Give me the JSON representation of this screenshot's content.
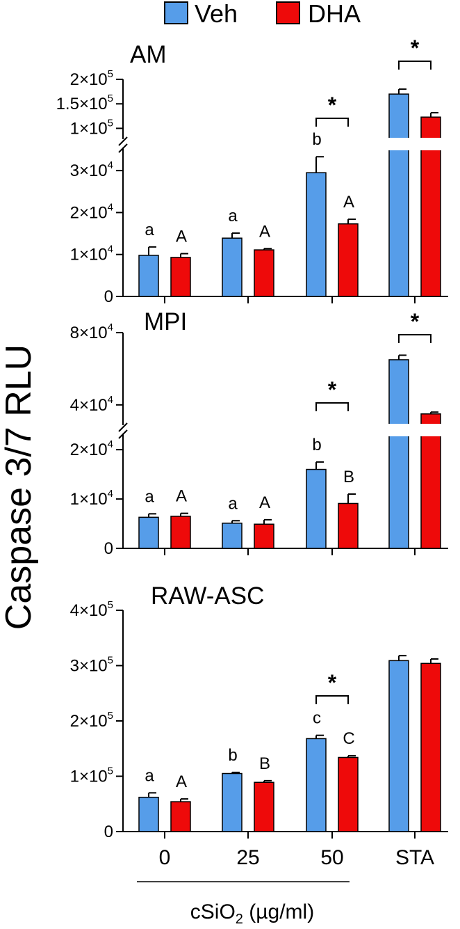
{
  "chart_data": {
    "type": "bar",
    "ylabel": "Caspase 3/7 RLU",
    "xlabel": {
      "main": "cSiO",
      "subscript": "2",
      "units": " (µg/ml)"
    },
    "legend": [
      {
        "name": "Veh",
        "color": "#569DE9"
      },
      {
        "name": "DHA",
        "color": "#EE0A0A"
      }
    ],
    "categories": [
      "0",
      "25",
      "50",
      "STA"
    ],
    "panels": [
      {
        "title": "AM",
        "axis_break": true,
        "y_ticks_lower": [
          {
            "value": 0,
            "mant": "0",
            "exp": ""
          },
          {
            "value": 10000,
            "mant": "1×10",
            "exp": "4"
          },
          {
            "value": 20000,
            "mant": "2×10",
            "exp": "4"
          },
          {
            "value": 30000,
            "mant": "3×10",
            "exp": "4"
          }
        ],
        "y_ticks_upper": [
          {
            "value": 100000,
            "mant": "1×10",
            "exp": "5"
          },
          {
            "value": 150000,
            "mant": "1.5×10",
            "exp": "5"
          },
          {
            "value": 200000,
            "mant": "2×10",
            "exp": "5"
          }
        ],
        "series": [
          {
            "name": "Veh",
            "values": [
              9800,
              13900,
              29500,
              170000
            ],
            "errors": [
              2000,
              1200,
              3800,
              10000
            ],
            "letters": [
              "a",
              "a",
              "b",
              ""
            ]
          },
          {
            "name": "DHA",
            "values": [
              9300,
              11100,
              17300,
              123000
            ],
            "errors": [
              900,
              300,
              1100,
              9000
            ],
            "letters": [
              "A",
              "A",
              "A",
              ""
            ]
          }
        ],
        "significance": [
          {
            "category": "50",
            "label": "*"
          },
          {
            "category": "STA",
            "label": "*"
          }
        ]
      },
      {
        "title": "MPI",
        "axis_break": true,
        "y_ticks_lower": [
          {
            "value": 0,
            "mant": "0",
            "exp": ""
          },
          {
            "value": 10000,
            "mant": "1×10",
            "exp": "4"
          },
          {
            "value": 20000,
            "mant": "2×10",
            "exp": "4"
          }
        ],
        "y_ticks_upper": [
          {
            "value": 40000,
            "mant": "4×10",
            "exp": "4"
          },
          {
            "value": 80000,
            "mant": "8×10",
            "exp": "4"
          }
        ],
        "series": [
          {
            "name": "Veh",
            "values": [
              6300,
              5100,
              16000,
              65000
            ],
            "errors": [
              700,
              500,
              1500,
              2500
            ],
            "letters": [
              "a",
              "a",
              "b",
              ""
            ]
          },
          {
            "name": "DHA",
            "values": [
              6500,
              4900,
              9100,
              35000
            ],
            "errors": [
              600,
              900,
              1900,
              1000
            ],
            "letters": [
              "A",
              "A",
              "B",
              ""
            ]
          }
        ],
        "significance": [
          {
            "category": "50",
            "label": "*"
          },
          {
            "category": "STA",
            "label": "*"
          }
        ]
      },
      {
        "title": "RAW-ASC",
        "axis_break": false,
        "y_ticks": [
          {
            "value": 0,
            "mant": "0",
            "exp": ""
          },
          {
            "value": 100000,
            "mant": "1×10",
            "exp": "5"
          },
          {
            "value": 200000,
            "mant": "2×10",
            "exp": "5"
          },
          {
            "value": 300000,
            "mant": "3×10",
            "exp": "5"
          },
          {
            "value": 400000,
            "mant": "4×10",
            "exp": "5"
          }
        ],
        "series": [
          {
            "name": "Veh",
            "values": [
              62000,
              105000,
              168000,
              309000
            ],
            "errors": [
              8000,
              2000,
              6000,
              9000
            ],
            "letters": [
              "a",
              "b",
              "c",
              ""
            ]
          },
          {
            "name": "DHA",
            "values": [
              54000,
              89000,
              134000,
              304000
            ],
            "errors": [
              5000,
              3000,
              3000,
              8000
            ],
            "letters": [
              "A",
              "B",
              "C",
              ""
            ]
          }
        ],
        "significance": [
          {
            "category": "50",
            "label": "*"
          }
        ]
      }
    ]
  }
}
